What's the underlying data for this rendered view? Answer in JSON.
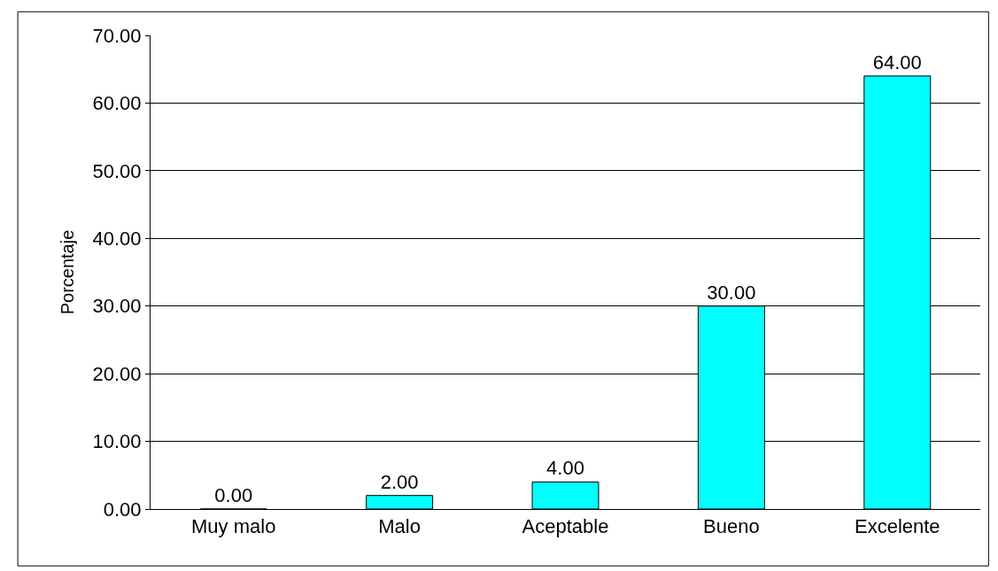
{
  "chart_data": {
    "type": "bar",
    "ylabel": "Porcentaje",
    "categories": [
      "Muy malo",
      "Malo",
      "Aceptable",
      "Bueno",
      "Excelente"
    ],
    "values": [
      0,
      2,
      4,
      30,
      64
    ],
    "value_labels": [
      "0.00",
      "2.00",
      "4.00",
      "30.00",
      "64.00"
    ],
    "color": "#00ffff",
    "ylim": [
      0,
      70
    ],
    "yticks": [
      {
        "value": 0,
        "label": "0.00"
      },
      {
        "value": 10,
        "label": "10.00"
      },
      {
        "value": 20,
        "label": "20.00"
      },
      {
        "value": 30,
        "label": "30.00"
      },
      {
        "value": 40,
        "label": "40.00"
      },
      {
        "value": 50,
        "label": "50.00"
      },
      {
        "value": 60,
        "label": "60.00"
      },
      {
        "value": 70,
        "label": "70.00"
      }
    ],
    "grid": "y"
  }
}
